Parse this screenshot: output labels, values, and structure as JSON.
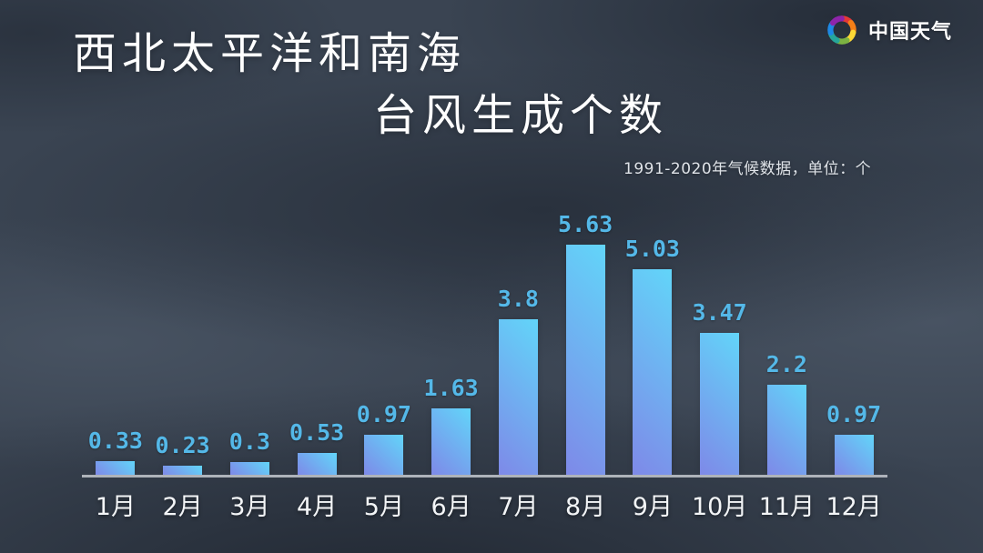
{
  "logo": {
    "brand": "中国天气",
    "icon": "pinwheel-icon",
    "petal_colors": [
      "#e53935",
      "#f57f17",
      "#fdd835",
      "#7cb342",
      "#26a69a",
      "#1e88e5",
      "#8e24aa"
    ]
  },
  "title": {
    "line1": "西北太平洋和南海",
    "line2": "台风生成个数"
  },
  "subtitle": "1991-2020年气候数据，单位：个",
  "chart_data": {
    "type": "bar",
    "title": "西北太平洋和南海台风生成个数",
    "subtitle": "1991-2020年气候数据，单位：个",
    "categories": [
      "1月",
      "2月",
      "3月",
      "4月",
      "5月",
      "6月",
      "7月",
      "8月",
      "9月",
      "10月",
      "11月",
      "12月"
    ],
    "values": [
      0.33,
      0.23,
      0.3,
      0.53,
      0.97,
      1.63,
      3.8,
      5.63,
      5.03,
      3.47,
      2.2,
      0.97
    ],
    "unit": "个",
    "xlabel": "",
    "ylabel": "",
    "ylim": [
      0,
      6
    ],
    "grid": false,
    "legend": false,
    "value_labels_shown": true,
    "bar_gradient_top": "#62d5f9",
    "bar_gradient_bottom": "#7e89e8",
    "value_label_color": "#54b8e8",
    "axis_line_color": "#aeb3ba",
    "month_label_color": "#f3f5f7"
  }
}
